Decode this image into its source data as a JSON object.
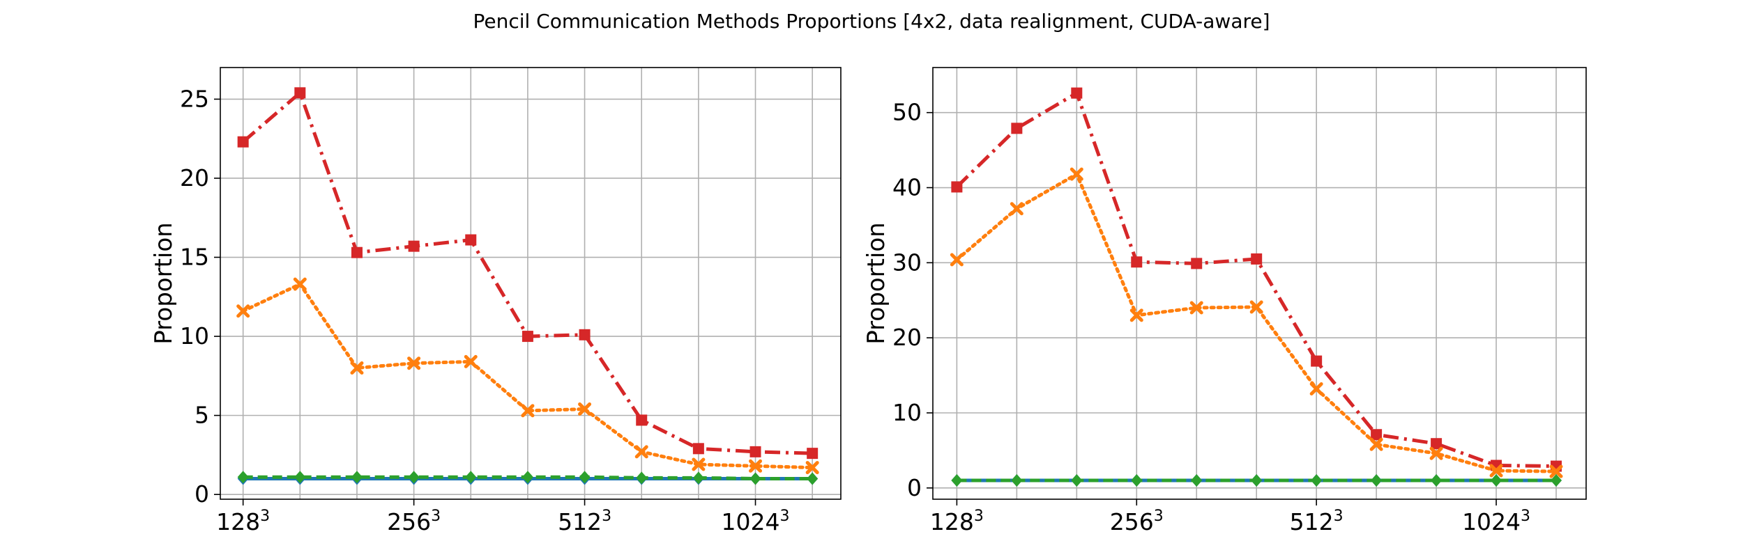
{
  "title": "Pencil Communication Methods Proportions [4x2, data realignment, CUDA-aware]",
  "colors": {
    "red": "#d62728",
    "orange": "#ff7f0e",
    "green": "#2ca02c",
    "blue": "#1f77b4",
    "grid": "#b0b0b0",
    "axis": "#000000"
  },
  "chart_data": [
    {
      "type": "line",
      "ylabel": "Proportion",
      "xlabel": "",
      "x_tick_labels": [
        "128",
        "256",
        "512",
        "1024"
      ],
      "x_tick_superscript": "3",
      "ylim": [
        -0.3,
        27
      ],
      "y_ticks": [
        0,
        5,
        10,
        15,
        20,
        25
      ],
      "grid": true,
      "x": [
        0,
        1,
        2,
        3,
        4,
        5,
        6,
        7,
        8,
        9,
        10
      ],
      "series": [
        {
          "color": "red",
          "linestyle": "dashdot",
          "marker": "square",
          "values": [
            22.3,
            25.4,
            15.3,
            15.7,
            16.1,
            10.0,
            10.1,
            4.7,
            2.9,
            2.7,
            2.6
          ]
        },
        {
          "color": "orange",
          "linestyle": "dotted",
          "marker": "x",
          "values": [
            11.6,
            13.3,
            8.0,
            8.3,
            8.4,
            5.3,
            5.4,
            2.7,
            1.9,
            1.8,
            1.7
          ]
        },
        {
          "color": "blue",
          "linestyle": "solid",
          "marker": "diamond",
          "values": [
            1.0,
            1.0,
            1.0,
            1.0,
            1.0,
            1.0,
            1.0,
            1.0,
            1.0,
            1.0,
            1.0
          ]
        },
        {
          "color": "green",
          "linestyle": "dashed",
          "marker": "diamond",
          "values": [
            1.1,
            1.1,
            1.1,
            1.1,
            1.1,
            1.1,
            1.1,
            1.05,
            1.05,
            1.0,
            1.0
          ]
        }
      ]
    },
    {
      "type": "line",
      "ylabel": "Proportion",
      "xlabel": "",
      "x_tick_labels": [
        "128",
        "256",
        "512",
        "1024"
      ],
      "x_tick_superscript": "3",
      "ylim": [
        -1.5,
        56
      ],
      "y_ticks": [
        0,
        10,
        20,
        30,
        40,
        50
      ],
      "grid": true,
      "x": [
        0,
        1,
        2,
        3,
        4,
        5,
        6,
        7,
        8,
        9,
        10
      ],
      "series": [
        {
          "color": "red",
          "linestyle": "dashdot",
          "marker": "square",
          "values": [
            40.1,
            47.9,
            52.6,
            30.1,
            29.9,
            30.5,
            16.9,
            7.1,
            5.9,
            3.0,
            2.9
          ]
        },
        {
          "color": "orange",
          "linestyle": "dotted",
          "marker": "x",
          "values": [
            30.4,
            37.2,
            41.8,
            23.0,
            24.0,
            24.1,
            13.2,
            5.8,
            4.6,
            2.3,
            2.2
          ]
        },
        {
          "color": "blue",
          "linestyle": "solid",
          "marker": "diamond",
          "values": [
            1.0,
            1.0,
            1.0,
            1.0,
            1.0,
            1.0,
            1.0,
            1.0,
            1.0,
            1.0,
            1.0
          ]
        },
        {
          "color": "green",
          "linestyle": "dashed",
          "marker": "diamond",
          "values": [
            1.0,
            1.0,
            1.0,
            1.0,
            1.0,
            1.0,
            1.0,
            1.0,
            1.0,
            1.0,
            1.0
          ]
        }
      ]
    }
  ]
}
